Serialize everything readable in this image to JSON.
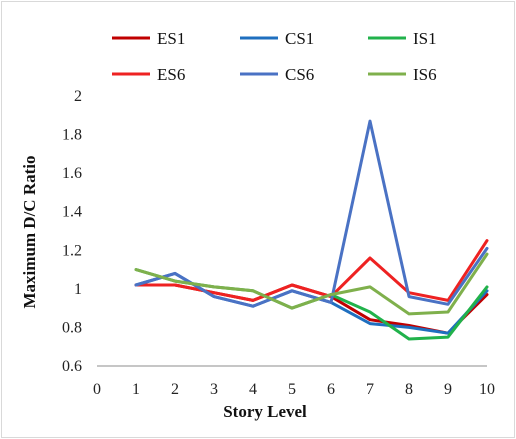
{
  "chart_data": {
    "type": "line",
    "xlabel": "Story Level",
    "ylabel": "Maximum D/C Ratio",
    "xlim": [
      0,
      10
    ],
    "ylim": [
      0.6,
      2
    ],
    "x_ticks": [
      "0",
      "1",
      "2",
      "3",
      "4",
      "5",
      "6",
      "7",
      "8",
      "9",
      "10"
    ],
    "y_ticks": [
      "0.6",
      "0.8",
      "1",
      "1.2",
      "1.4",
      "1.6",
      "1.8",
      "2"
    ],
    "grid": false,
    "legend_position": "top",
    "x": [
      1,
      2,
      3,
      4,
      5,
      6,
      7,
      8,
      9,
      10
    ],
    "series": [
      {
        "name": "ES1",
        "color": "#c00000",
        "values": [
          1.02,
          1.02,
          0.98,
          0.94,
          1.02,
          0.96,
          0.84,
          0.81,
          0.77,
          0.97
        ]
      },
      {
        "name": "CS1",
        "color": "#1f6fbf",
        "values": [
          1.02,
          1.08,
          0.96,
          0.91,
          0.99,
          0.93,
          0.82,
          0.8,
          0.77,
          0.99
        ]
      },
      {
        "name": "IS1",
        "color": "#21b24b",
        "values": [
          1.1,
          1.04,
          1.01,
          0.99,
          0.9,
          0.97,
          0.88,
          0.74,
          0.75,
          1.01
        ]
      },
      {
        "name": "ES6",
        "color": "#ee2222",
        "values": [
          1.02,
          1.02,
          0.98,
          0.94,
          1.02,
          0.96,
          1.16,
          0.98,
          0.94,
          1.25
        ]
      },
      {
        "name": "CS6",
        "color": "#4a72c4",
        "values": [
          1.02,
          1.08,
          0.96,
          0.91,
          0.99,
          0.93,
          1.87,
          0.96,
          0.92,
          1.21
        ]
      },
      {
        "name": "IS6",
        "color": "#7fb04c",
        "values": [
          1.1,
          1.04,
          1.01,
          0.99,
          0.9,
          0.97,
          1.01,
          0.87,
          0.88,
          1.18
        ]
      }
    ]
  }
}
